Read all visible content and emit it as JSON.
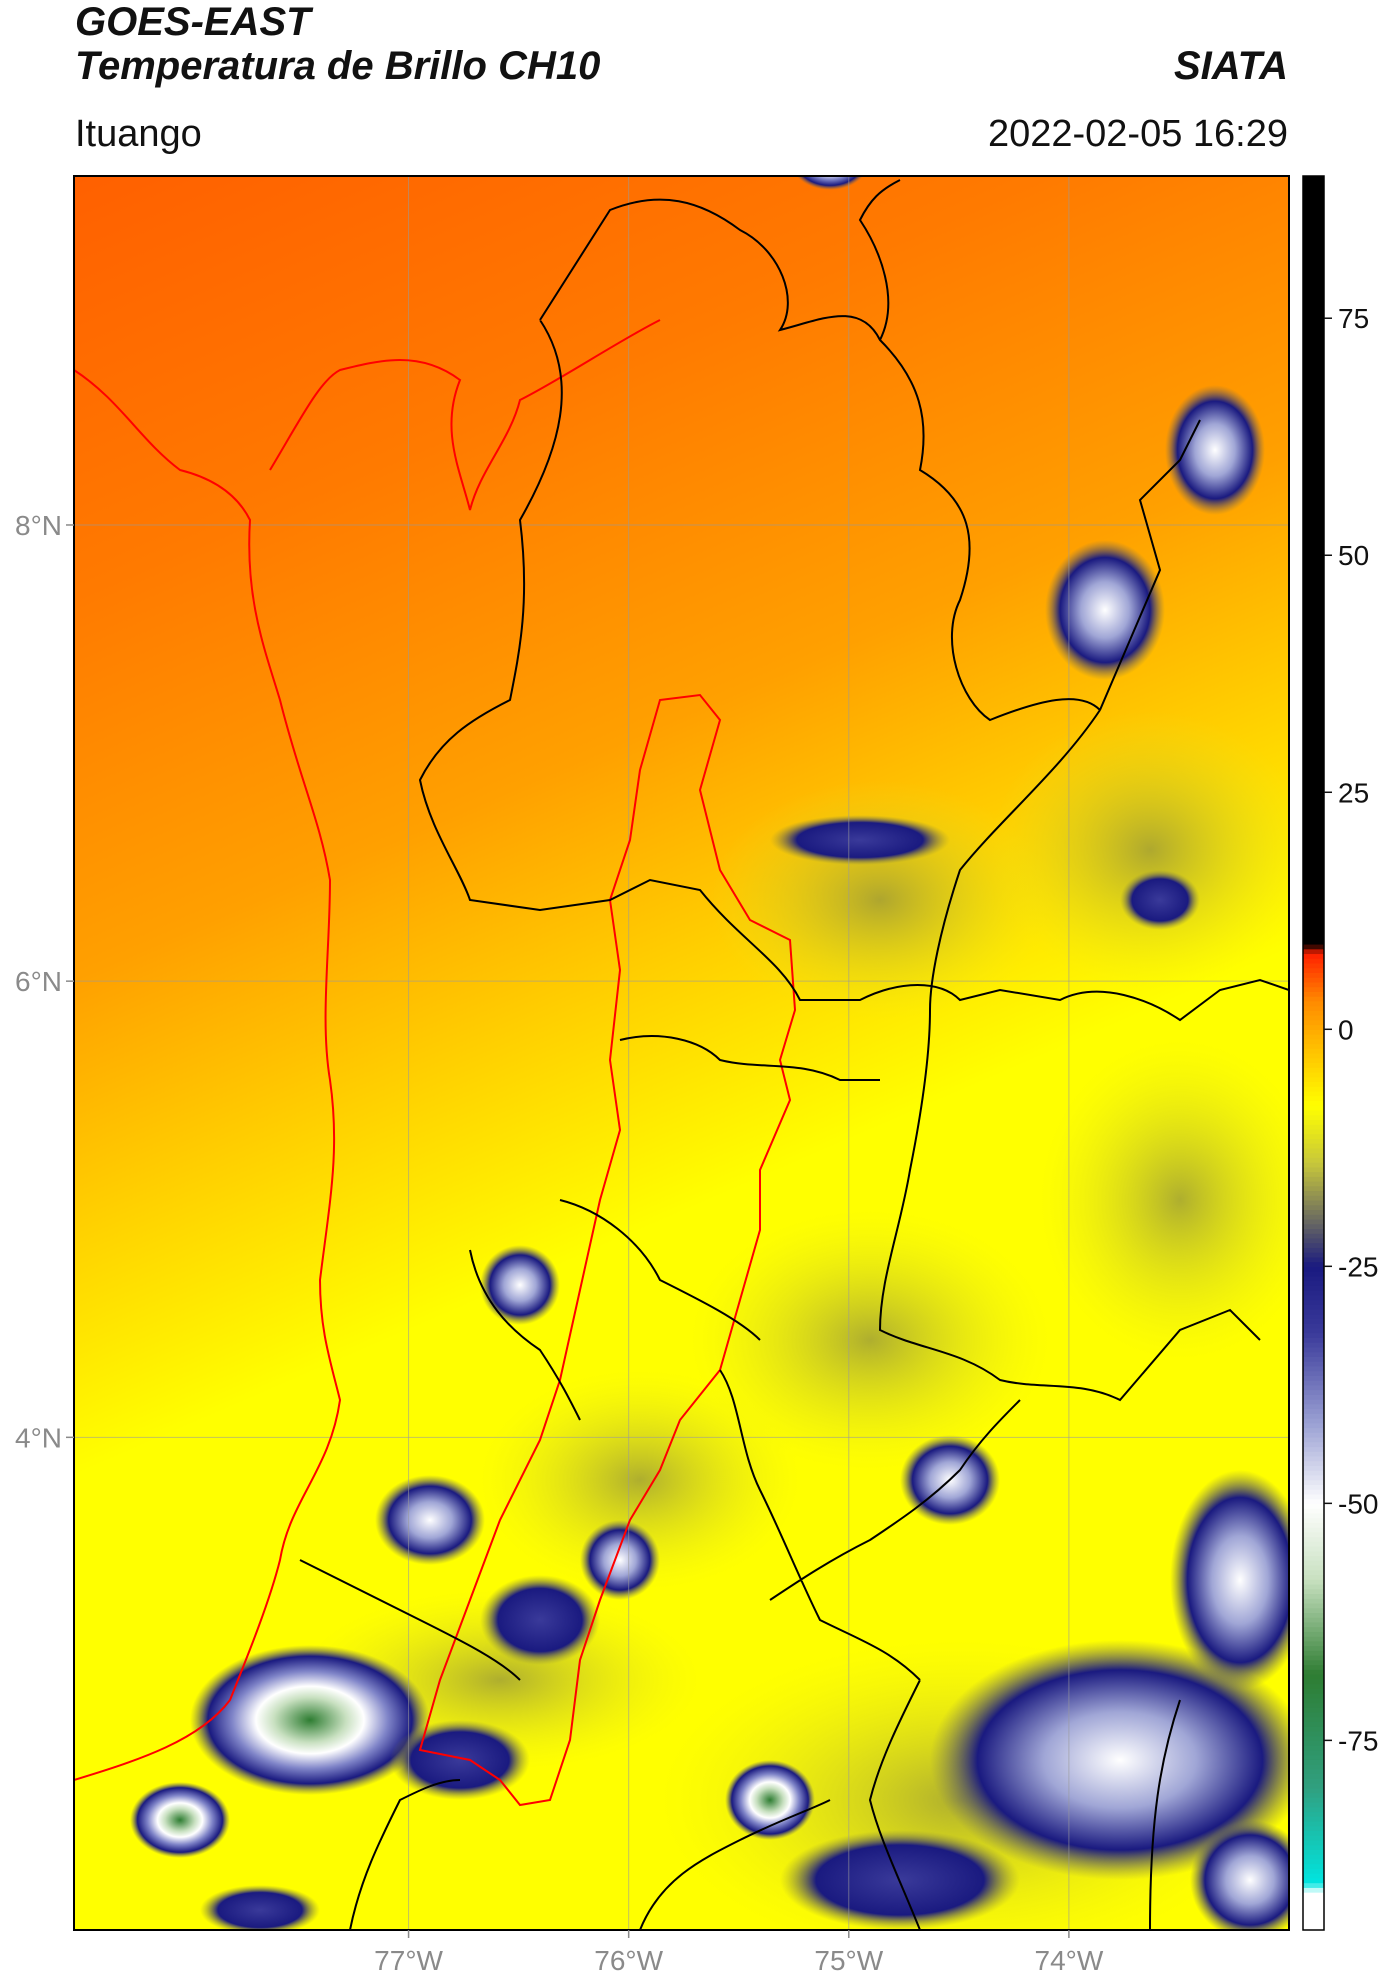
{
  "header": {
    "title_line1": "GOES-EAST",
    "title_line2": "Temperatura de Brillo CH10",
    "brand": "SIATA",
    "location": "Ituango",
    "datetime": "2022-02-05 16:29"
  },
  "map": {
    "lat_ticks": [
      {
        "label": "8°N",
        "value": 8
      },
      {
        "label": "6°N",
        "value": 6
      },
      {
        "label": "4°N",
        "value": 4
      }
    ],
    "lon_ticks": [
      {
        "label": "77°W",
        "value": -77
      },
      {
        "label": "76°W",
        "value": -76
      },
      {
        "label": "75°W",
        "value": -75
      },
      {
        "label": "74°W",
        "value": -74
      }
    ],
    "extent": {
      "lon_min": -78.52,
      "lon_max": -73.0,
      "lat_min": 1.84,
      "lat_max": 9.53
    },
    "boundary_colors": {
      "departments": "#000000",
      "basin": "#ff0000",
      "coastline": "#ff0000"
    }
  },
  "colorbar": {
    "range": [
      -95,
      90
    ],
    "ticks": [
      {
        "label": "75",
        "value": 75
      },
      {
        "label": "50",
        "value": 50
      },
      {
        "label": "25",
        "value": 25
      },
      {
        "label": "0",
        "value": 0
      },
      {
        "label": "-25",
        "value": -25
      },
      {
        "label": "-50",
        "value": -50
      },
      {
        "label": "-75",
        "value": -75
      }
    ],
    "colors": [
      {
        "value": -95,
        "color": "#ffffff"
      },
      {
        "value": -91,
        "color": "#ffffff"
      },
      {
        "value": -90,
        "color": "#00e5e0"
      },
      {
        "value": -80,
        "color": "#30a080"
      },
      {
        "value": -68,
        "color": "#2e7d32"
      },
      {
        "value": -58,
        "color": "#c8e0c0"
      },
      {
        "value": -50,
        "color": "#ffffff"
      },
      {
        "value": -42,
        "color": "#a0a6d6"
      },
      {
        "value": -32,
        "color": "#3a3a9a"
      },
      {
        "value": -25,
        "color": "#1a1a80"
      },
      {
        "value": -20,
        "color": "#6c6c60"
      },
      {
        "value": -14,
        "color": "#c8c83a"
      },
      {
        "value": -8,
        "color": "#ffff00"
      },
      {
        "value": -2,
        "color": "#ffc000"
      },
      {
        "value": 3,
        "color": "#ff8a00"
      },
      {
        "value": 8,
        "color": "#ff2000"
      },
      {
        "value": 9,
        "color": "#000000"
      },
      {
        "value": 90,
        "color": "#000000"
      }
    ]
  }
}
